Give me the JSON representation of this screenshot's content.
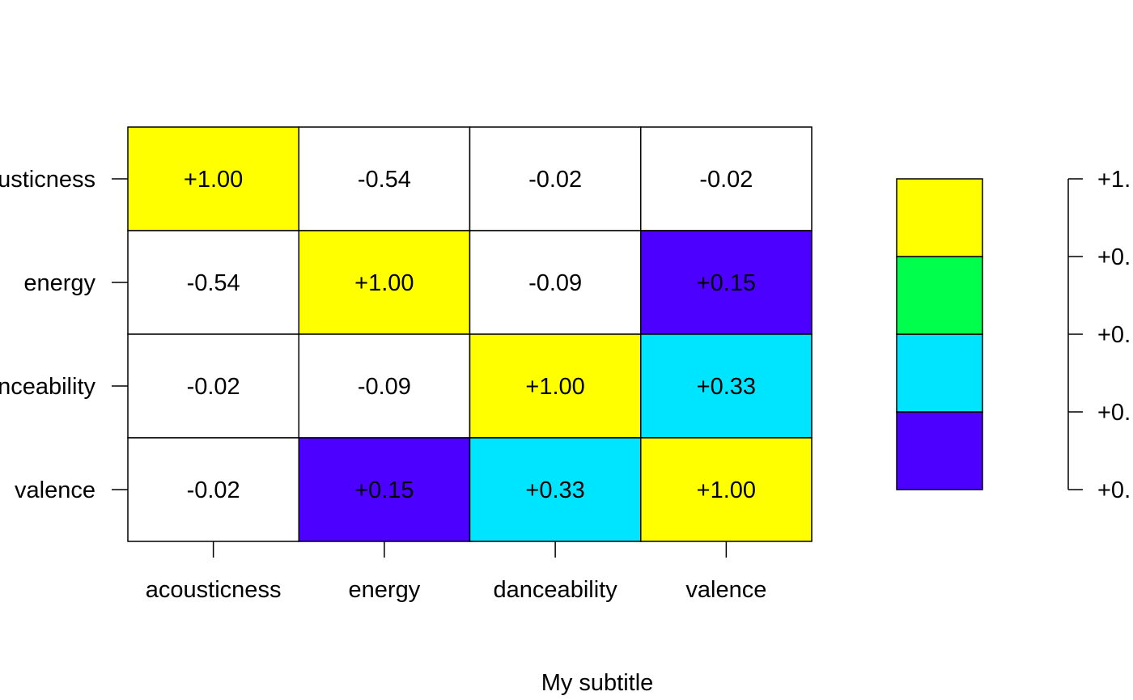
{
  "chart_data": {
    "type": "heatmap",
    "title": "",
    "subtitle": "My subtitle",
    "rows": [
      "acousticness",
      "energy",
      "danceability",
      "valence"
    ],
    "columns": [
      "acousticness",
      "energy",
      "danceability",
      "valence"
    ],
    "values": [
      [
        1.0,
        -0.54,
        -0.02,
        -0.02
      ],
      [
        -0.54,
        1.0,
        -0.09,
        0.15
      ],
      [
        -0.02,
        -0.09,
        1.0,
        0.33
      ],
      [
        -0.02,
        0.15,
        0.33,
        1.0
      ]
    ],
    "cell_labels": [
      [
        "+1.00",
        "-0.54",
        "-0.02",
        "-0.02"
      ],
      [
        "-0.54",
        "+1.00",
        "-0.09",
        "+0.15"
      ],
      [
        "-0.02",
        "-0.09",
        "+1.00",
        "+0.33"
      ],
      [
        "-0.02",
        "+0.15",
        "+0.33",
        "+1.00"
      ]
    ],
    "legend": {
      "breaks": [
        0.0,
        0.25,
        0.5,
        0.75,
        1.0
      ],
      "tick_labels": [
        "+0.",
        "+0.",
        "+0.",
        "+0.",
        "+1."
      ],
      "colors": [
        "#4c00ff",
        "#00e5ff",
        "#00ff4d",
        "#ffff00"
      ],
      "below_range_color": "#ffffff",
      "placement": "right"
    },
    "grid": false
  }
}
